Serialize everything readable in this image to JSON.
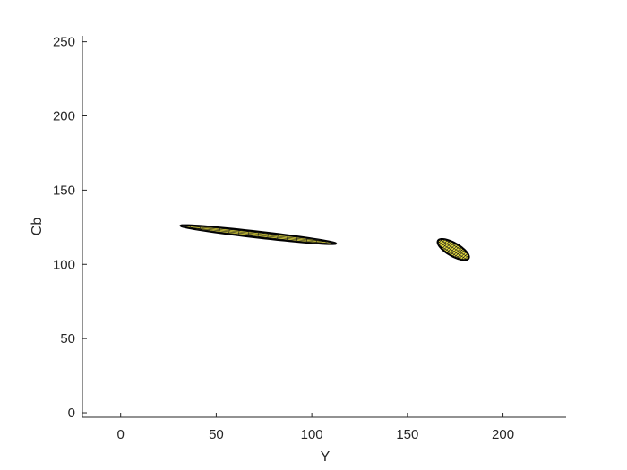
{
  "chart_data": {
    "type": "scatter",
    "title": "",
    "xlabel": "Y",
    "ylabel": "Cb",
    "xlim": [
      -20,
      233
    ],
    "ylim": [
      -3,
      254
    ],
    "x_ticks": [
      "0",
      "50",
      "100",
      "150",
      "200"
    ],
    "y_ticks": [
      "0",
      "50",
      "100",
      "150",
      "200",
      "250"
    ],
    "x_tick_values": [
      0,
      50,
      100,
      150,
      200
    ],
    "y_tick_values": [
      0,
      50,
      100,
      150,
      200,
      250
    ],
    "grid": false,
    "legend": "none",
    "series": [
      {
        "shape": "ellipse",
        "center": [
          72,
          120
        ],
        "angle_deg": -8.4,
        "semi_axes": [
          41,
          2
        ],
        "fill_color": "#e6dc3c",
        "edge_color": "#000000"
      },
      {
        "shape": "ellipse",
        "center": [
          174,
          110
        ],
        "angle_deg": -39,
        "semi_axes": [
          10,
          4
        ],
        "fill_color": "#e6dc3c",
        "edge_color": "#000000"
      }
    ]
  }
}
